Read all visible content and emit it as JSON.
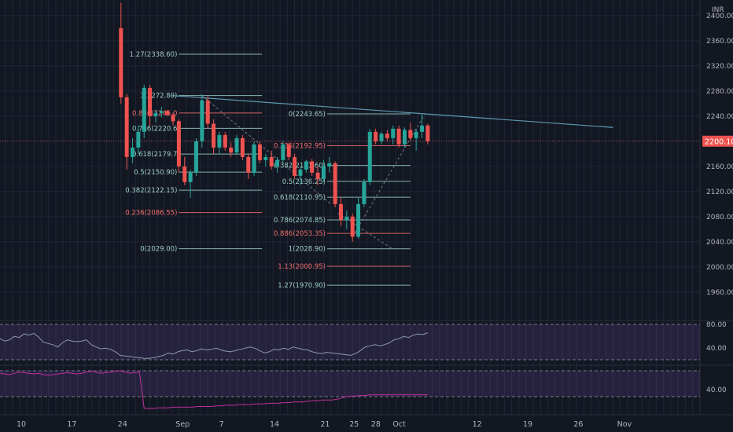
{
  "chart_data": {
    "type": "candlestick",
    "currency": "INR",
    "last_price": "2200.10",
    "ylim": [
      1940,
      2420
    ],
    "price_ticks": [
      "2400.00",
      "2360.00",
      "2320.00",
      "2280.00",
      "2240.00",
      "2200.00",
      "2160.00",
      "2120.00",
      "2080.00",
      "2040.00",
      "2000.00",
      "1960.00"
    ],
    "date_labels": [
      {
        "label": "10",
        "day": 0
      },
      {
        "label": "17",
        "day": 7
      },
      {
        "label": "24",
        "day": 14
      },
      {
        "label": "Sep",
        "day": 22
      },
      {
        "label": "7",
        "day": 28
      },
      {
        "label": "14",
        "day": 35
      },
      {
        "label": "21",
        "day": 42
      },
      {
        "label": "25",
        "day": 46
      },
      {
        "label": "28",
        "day": 49
      },
      {
        "label": "Oct",
        "day": 52
      },
      {
        "label": "12",
        "day": 63
      },
      {
        "label": "19",
        "day": 70
      },
      {
        "label": "26",
        "day": 77
      },
      {
        "label": "Nov",
        "day": 83
      }
    ],
    "candles": [
      {
        "day": 14,
        "o": 2380,
        "h": 2420,
        "l": 2260,
        "c": 2270
      },
      {
        "day": 14.8,
        "o": 2270,
        "h": 2275,
        "l": 2155,
        "c": 2175
      },
      {
        "day": 15.6,
        "o": 2175,
        "h": 2205,
        "l": 2165,
        "c": 2190
      },
      {
        "day": 16.4,
        "o": 2190,
        "h": 2225,
        "l": 2180,
        "c": 2215
      },
      {
        "day": 17.2,
        "o": 2215,
        "h": 2290,
        "l": 2205,
        "c": 2285
      },
      {
        "day": 18.0,
        "o": 2285,
        "h": 2290,
        "l": 2225,
        "c": 2240
      },
      {
        "day": 18.8,
        "o": 2240,
        "h": 2250,
        "l": 2230,
        "c": 2245
      },
      {
        "day": 19.6,
        "o": 2245,
        "h": 2255,
        "l": 2238,
        "c": 2248
      },
      {
        "day": 20.4,
        "o": 2248,
        "h": 2250,
        "l": 2240,
        "c": 2242
      },
      {
        "day": 21.2,
        "o": 2242,
        "h": 2245,
        "l": 2225,
        "c": 2232
      },
      {
        "day": 22.0,
        "o": 2232,
        "h": 2235,
        "l": 2150,
        "c": 2160
      },
      {
        "day": 22.8,
        "o": 2160,
        "h": 2175,
        "l": 2130,
        "c": 2135
      },
      {
        "day": 23.6,
        "o": 2135,
        "h": 2155,
        "l": 2110,
        "c": 2150
      },
      {
        "day": 24.4,
        "o": 2150,
        "h": 2205,
        "l": 2145,
        "c": 2200
      },
      {
        "day": 25.2,
        "o": 2200,
        "h": 2275,
        "l": 2190,
        "c": 2265
      },
      {
        "day": 26.0,
        "o": 2265,
        "h": 2272,
        "l": 2220,
        "c": 2228
      },
      {
        "day": 26.8,
        "o": 2228,
        "h": 2235,
        "l": 2180,
        "c": 2190
      },
      {
        "day": 27.6,
        "o": 2190,
        "h": 2215,
        "l": 2180,
        "c": 2210
      },
      {
        "day": 28.4,
        "o": 2210,
        "h": 2215,
        "l": 2185,
        "c": 2190
      },
      {
        "day": 29.2,
        "o": 2190,
        "h": 2198,
        "l": 2175,
        "c": 2182
      },
      {
        "day": 30.0,
        "o": 2182,
        "h": 2210,
        "l": 2178,
        "c": 2205
      },
      {
        "day": 30.8,
        "o": 2205,
        "h": 2210,
        "l": 2170,
        "c": 2175
      },
      {
        "day": 31.6,
        "o": 2175,
        "h": 2180,
        "l": 2140,
        "c": 2150
      },
      {
        "day": 32.4,
        "o": 2150,
        "h": 2200,
        "l": 2145,
        "c": 2195
      },
      {
        "day": 33.2,
        "o": 2195,
        "h": 2200,
        "l": 2165,
        "c": 2170
      },
      {
        "day": 34.0,
        "o": 2170,
        "h": 2180,
        "l": 2160,
        "c": 2175
      },
      {
        "day": 34.8,
        "o": 2175,
        "h": 2185,
        "l": 2155,
        "c": 2160
      },
      {
        "day": 35.6,
        "o": 2160,
        "h": 2175,
        "l": 2150,
        "c": 2170
      },
      {
        "day": 36.4,
        "o": 2170,
        "h": 2200,
        "l": 2165,
        "c": 2195
      },
      {
        "day": 37.2,
        "o": 2195,
        "h": 2198,
        "l": 2170,
        "c": 2175
      },
      {
        "day": 38.0,
        "o": 2175,
        "h": 2180,
        "l": 2140,
        "c": 2145
      },
      {
        "day": 38.8,
        "o": 2145,
        "h": 2160,
        "l": 2130,
        "c": 2155
      },
      {
        "day": 39.6,
        "o": 2155,
        "h": 2170,
        "l": 2150,
        "c": 2168
      },
      {
        "day": 40.4,
        "o": 2168,
        "h": 2172,
        "l": 2145,
        "c": 2150
      },
      {
        "day": 41.2,
        "o": 2150,
        "h": 2160,
        "l": 2130,
        "c": 2140
      },
      {
        "day": 42.0,
        "o": 2140,
        "h": 2170,
        "l": 2135,
        "c": 2160
      },
      {
        "day": 42.8,
        "o": 2160,
        "h": 2175,
        "l": 2150,
        "c": 2165
      },
      {
        "day": 43.6,
        "o": 2165,
        "h": 2168,
        "l": 2095,
        "c": 2100
      },
      {
        "day": 44.4,
        "o": 2100,
        "h": 2110,
        "l": 2065,
        "c": 2075
      },
      {
        "day": 45.2,
        "o": 2075,
        "h": 2090,
        "l": 2060,
        "c": 2080
      },
      {
        "day": 46.0,
        "o": 2080,
        "h": 2085,
        "l": 2040,
        "c": 2048
      },
      {
        "day": 46.8,
        "o": 2048,
        "h": 2110,
        "l": 2045,
        "c": 2100
      },
      {
        "day": 47.6,
        "o": 2100,
        "h": 2140,
        "l": 2095,
        "c": 2135
      },
      {
        "day": 48.4,
        "o": 2135,
        "h": 2220,
        "l": 2130,
        "c": 2215
      },
      {
        "day": 49.2,
        "o": 2215,
        "h": 2220,
        "l": 2195,
        "c": 2200
      },
      {
        "day": 50.0,
        "o": 2200,
        "h": 2215,
        "l": 2195,
        "c": 2212
      },
      {
        "day": 50.8,
        "o": 2212,
        "h": 2218,
        "l": 2200,
        "c": 2205
      },
      {
        "day": 51.6,
        "o": 2205,
        "h": 2225,
        "l": 2195,
        "c": 2220
      },
      {
        "day": 52.4,
        "o": 2220,
        "h": 2225,
        "l": 2190,
        "c": 2195
      },
      {
        "day": 53.2,
        "o": 2195,
        "h": 2222,
        "l": 2190,
        "c": 2218
      },
      {
        "day": 54.0,
        "o": 2218,
        "h": 2230,
        "l": 2200,
        "c": 2205
      },
      {
        "day": 54.8,
        "o": 2205,
        "h": 2220,
        "l": 2185,
        "c": 2215
      },
      {
        "day": 55.6,
        "o": 2215,
        "h": 2243,
        "l": 2205,
        "c": 2225
      },
      {
        "day": 56.4,
        "o": 2225,
        "h": 2228,
        "l": 2195,
        "c": 2200
      }
    ],
    "fib_left": {
      "day_start": 22.0,
      "day_end": 33.5,
      "color_default": "#8fbcbb",
      "levels": [
        {
          "label": "1.27(2338.60)",
          "price": 2338.6,
          "color": "#9ecfc4"
        },
        {
          "label": "1(2272.80)",
          "price": 2272.8,
          "color": "#9ecfc4"
        },
        {
          "label": "0.886(2245.0",
          "price": 2245.0,
          "color": "#f06e6e"
        },
        {
          "label": "0.786(2220.6",
          "price": 2220.6,
          "color": "#9ecfc4"
        },
        {
          "label": "0.618(2179.7",
          "price": 2179.7,
          "color": "#9ecfc4"
        },
        {
          "label": "0.5(2150.90)",
          "price": 2150.9,
          "color": "#9ecfc4"
        },
        {
          "label": "0.382(2122.15)",
          "price": 2122.15,
          "color": "#9ecfc4"
        },
        {
          "label": "0.236(2086.55)",
          "price": 2086.55,
          "color": "#f06e6e"
        },
        {
          "label": "0(2029.00)",
          "price": 2029.0,
          "color": "#9ecfc4"
        }
      ]
    },
    "fib_right": {
      "day_start": 42.5,
      "day_end": 54.0,
      "levels": [
        {
          "label": "0(2243.65)",
          "price": 2243.65,
          "color": "#9ecfc4"
        },
        {
          "label": "0.236(2192.95)",
          "price": 2192.95,
          "color": "#f06e6e"
        },
        {
          "label": "0.382(2161.60)",
          "price": 2161.6,
          "color": "#9ecfc4"
        },
        {
          "label": "0.5(2136.25)",
          "price": 2136.25,
          "color": "#9ecfc4"
        },
        {
          "label": "0.618(2110.95)",
          "price": 2110.95,
          "color": "#9ecfc4"
        },
        {
          "label": "0.786(2074.85)",
          "price": 2074.85,
          "color": "#9ecfc4"
        },
        {
          "label": "0.886(2053.35)",
          "price": 2053.35,
          "color": "#f06e6e"
        },
        {
          "label": "1(2028.90)",
          "price": 2028.9,
          "color": "#9ecfc4"
        },
        {
          "label": "1.13(2000.95)",
          "price": 2000.95,
          "color": "#f06e6e"
        },
        {
          "label": "1.27(1970.90)",
          "price": 1970.9,
          "color": "#9ecfc4"
        }
      ]
    },
    "trendline": {
      "day1": 21.0,
      "price1": 2272.8,
      "day2": 82.0,
      "price2": 2222
    },
    "rsi": {
      "ticks": [
        "80.00",
        "40.00"
      ],
      "values": [
        62,
        58,
        60,
        66,
        64,
        70,
        68,
        71,
        65,
        56,
        54,
        52,
        48,
        55,
        60,
        58,
        57,
        58,
        60,
        52,
        48,
        45,
        46,
        44,
        40,
        34,
        33,
        32,
        31,
        30,
        29,
        29,
        30,
        32,
        34,
        38,
        36,
        40,
        42,
        43,
        40,
        42,
        45,
        43,
        44,
        46,
        43,
        41,
        40,
        42,
        44,
        46,
        48,
        46,
        42,
        38,
        40,
        44,
        43,
        46,
        44,
        48,
        46,
        44,
        43,
        40,
        38,
        37,
        39,
        38,
        37,
        36,
        35,
        34,
        37,
        42,
        48,
        50,
        52,
        50,
        52,
        55,
        60,
        62,
        66,
        64,
        68,
        70,
        69,
        72
      ]
    },
    "lower": {
      "ticks": [
        "40.00"
      ],
      "values": [
        60,
        59,
        58,
        60,
        62,
        61,
        60,
        59,
        60,
        58,
        57,
        58,
        59,
        60,
        61,
        60,
        59,
        60,
        62,
        63,
        62,
        60,
        61,
        62,
        63,
        64,
        62,
        60,
        61,
        62,
        6,
        6,
        6,
        7,
        7,
        7,
        8,
        8,
        8,
        8,
        8,
        9,
        9,
        9,
        9,
        10,
        10,
        11,
        11,
        11,
        12,
        12,
        12,
        13,
        13,
        13,
        14,
        14,
        14,
        15,
        15,
        16,
        16,
        16,
        17,
        18,
        18,
        19,
        19,
        19,
        20,
        22,
        24,
        25,
        25,
        26,
        26,
        27,
        27,
        27,
        27,
        27,
        27,
        27,
        27,
        27,
        27,
        27,
        27,
        27
      ]
    }
  }
}
